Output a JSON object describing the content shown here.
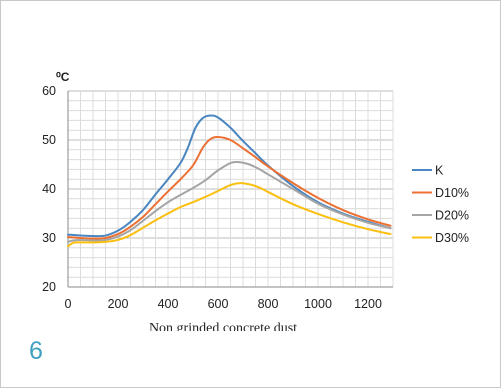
{
  "slide_number": "6",
  "chart_data": {
    "type": "line",
    "unit_label": "⁰C",
    "xlabel": "Non grinded concrete dust",
    "ylabel": "",
    "xlim": [
      0,
      1300
    ],
    "ylim": [
      20,
      60
    ],
    "xticks": [
      0,
      200,
      400,
      600,
      800,
      1000,
      1200
    ],
    "yticks": [
      20,
      30,
      40,
      50,
      60
    ],
    "grid": true,
    "legend_position": "right",
    "series": [
      {
        "name": "K",
        "color": "#4a86c0",
        "points": [
          [
            0,
            30.7
          ],
          [
            50,
            30.5
          ],
          [
            100,
            30.4
          ],
          [
            150,
            30.5
          ],
          [
            200,
            31.5
          ],
          [
            250,
            33.3
          ],
          [
            300,
            35.7
          ],
          [
            350,
            38.9
          ],
          [
            400,
            42
          ],
          [
            450,
            45.3
          ],
          [
            480,
            48.5
          ],
          [
            510,
            52.5
          ],
          [
            540,
            54.5
          ],
          [
            570,
            55
          ],
          [
            600,
            54.6
          ],
          [
            650,
            52.5
          ],
          [
            700,
            49.8
          ],
          [
            750,
            47.3
          ],
          [
            800,
            44.8
          ],
          [
            900,
            40.6
          ],
          [
            1000,
            37.3
          ],
          [
            1100,
            35
          ],
          [
            1200,
            33.3
          ],
          [
            1290,
            32
          ]
        ]
      },
      {
        "name": "D10%",
        "color": "#ec7032",
        "points": [
          [
            0,
            30.2
          ],
          [
            50,
            30
          ],
          [
            100,
            29.9
          ],
          [
            150,
            30
          ],
          [
            200,
            30.8
          ],
          [
            250,
            32.3
          ],
          [
            300,
            34.3
          ],
          [
            350,
            36.9
          ],
          [
            400,
            39.5
          ],
          [
            450,
            42
          ],
          [
            500,
            44.8
          ],
          [
            540,
            48.5
          ],
          [
            570,
            50.2
          ],
          [
            600,
            50.6
          ],
          [
            650,
            50
          ],
          [
            700,
            48.3
          ],
          [
            750,
            46.5
          ],
          [
            800,
            44.6
          ],
          [
            900,
            41.2
          ],
          [
            1000,
            38.2
          ],
          [
            1100,
            35.7
          ],
          [
            1200,
            33.8
          ],
          [
            1290,
            32.5
          ]
        ]
      },
      {
        "name": "D20%",
        "color": "#a5a5a5",
        "points": [
          [
            0,
            29.2
          ],
          [
            20,
            29.5
          ],
          [
            50,
            29.6
          ],
          [
            100,
            29.5
          ],
          [
            150,
            29.6
          ],
          [
            200,
            30.3
          ],
          [
            250,
            31.6
          ],
          [
            300,
            33.5
          ],
          [
            350,
            35.5
          ],
          [
            400,
            37.3
          ],
          [
            450,
            38.8
          ],
          [
            500,
            40.2
          ],
          [
            550,
            41.8
          ],
          [
            600,
            43.8
          ],
          [
            650,
            45.3
          ],
          [
            680,
            45.5
          ],
          [
            720,
            45.1
          ],
          [
            760,
            44.2
          ],
          [
            800,
            43
          ],
          [
            900,
            40
          ],
          [
            1000,
            37
          ],
          [
            1100,
            34.8
          ],
          [
            1200,
            33.1
          ],
          [
            1290,
            32
          ]
        ]
      },
      {
        "name": "D30%",
        "color": "#fbbf0f",
        "points": [
          [
            0,
            28.3
          ],
          [
            20,
            29
          ],
          [
            50,
            29.1
          ],
          [
            100,
            29.1
          ],
          [
            150,
            29.2
          ],
          [
            200,
            29.6
          ],
          [
            250,
            30.6
          ],
          [
            300,
            32.1
          ],
          [
            350,
            33.6
          ],
          [
            400,
            35
          ],
          [
            450,
            36.3
          ],
          [
            500,
            37.3
          ],
          [
            550,
            38.4
          ],
          [
            600,
            39.6
          ],
          [
            650,
            40.8
          ],
          [
            690,
            41.2
          ],
          [
            730,
            40.9
          ],
          [
            770,
            40.2
          ],
          [
            800,
            39.4
          ],
          [
            900,
            36.9
          ],
          [
            1000,
            34.9
          ],
          [
            1100,
            33.2
          ],
          [
            1200,
            31.8
          ],
          [
            1290,
            30.8
          ]
        ]
      }
    ]
  }
}
